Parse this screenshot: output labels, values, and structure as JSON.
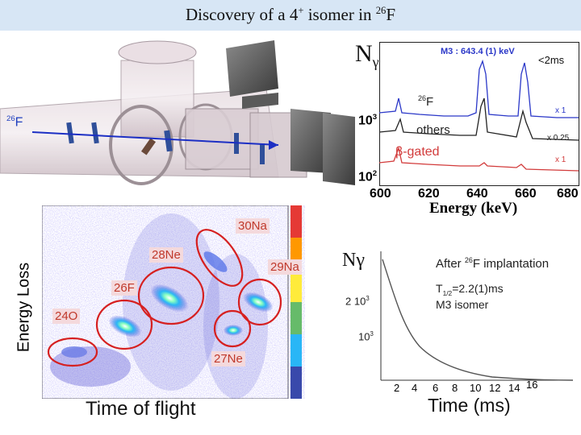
{
  "title": {
    "text": "Discovery of a 4",
    "sup1": "+",
    "text2": " isomer in ",
    "sup2": "26",
    "text3": "F"
  },
  "setup": {
    "beam_label_sup": "26",
    "beam_label": "F"
  },
  "spectrum": {
    "ylabel_main": "N",
    "ylabel_sub": "γ",
    "peak_label": "M3 : 643.4 (1) keV",
    "time_window": "<2ms",
    "ion_sup": "26",
    "ion": "F",
    "others_label": "others",
    "beta_label": "β-gated",
    "scale_1": "x 1",
    "scale_2": "x 0.25",
    "scale_3": "x 1",
    "ytick_1": "10",
    "ytick_1_sup": "3",
    "ytick_2": "10",
    "ytick_2_sup": "2",
    "xticks": [
      "600",
      "620",
      "640",
      "660",
      "680"
    ],
    "xlabel": "Energy (keV)",
    "colors": {
      "blue": "#2a37c8",
      "black": "#222222",
      "red": "#d23b3b"
    }
  },
  "pid": {
    "ylabel": "Energy Loss",
    "xlabel": "Time of flight",
    "labels": [
      "30Na",
      "28Ne",
      "29Na",
      "26F",
      "24O",
      "27Ne"
    ]
  },
  "decay": {
    "ylabel": "Nγ",
    "caption_prefix": "After ",
    "caption_sup": "26",
    "caption_suffix": "F implantation",
    "halflife_pre": "T",
    "halflife_sub": "1/2",
    "halflife_post": "=2.2(1)ms",
    "isomer": "M3 isomer",
    "ytick_1": "2 10",
    "ytick_1_sup": "3",
    "ytick_2": "10",
    "ytick_2_sup": "3",
    "xticks": [
      "2",
      "4",
      "6",
      "8",
      "10",
      "12",
      "14",
      "16"
    ],
    "xlabel": "Time (ms)"
  }
}
